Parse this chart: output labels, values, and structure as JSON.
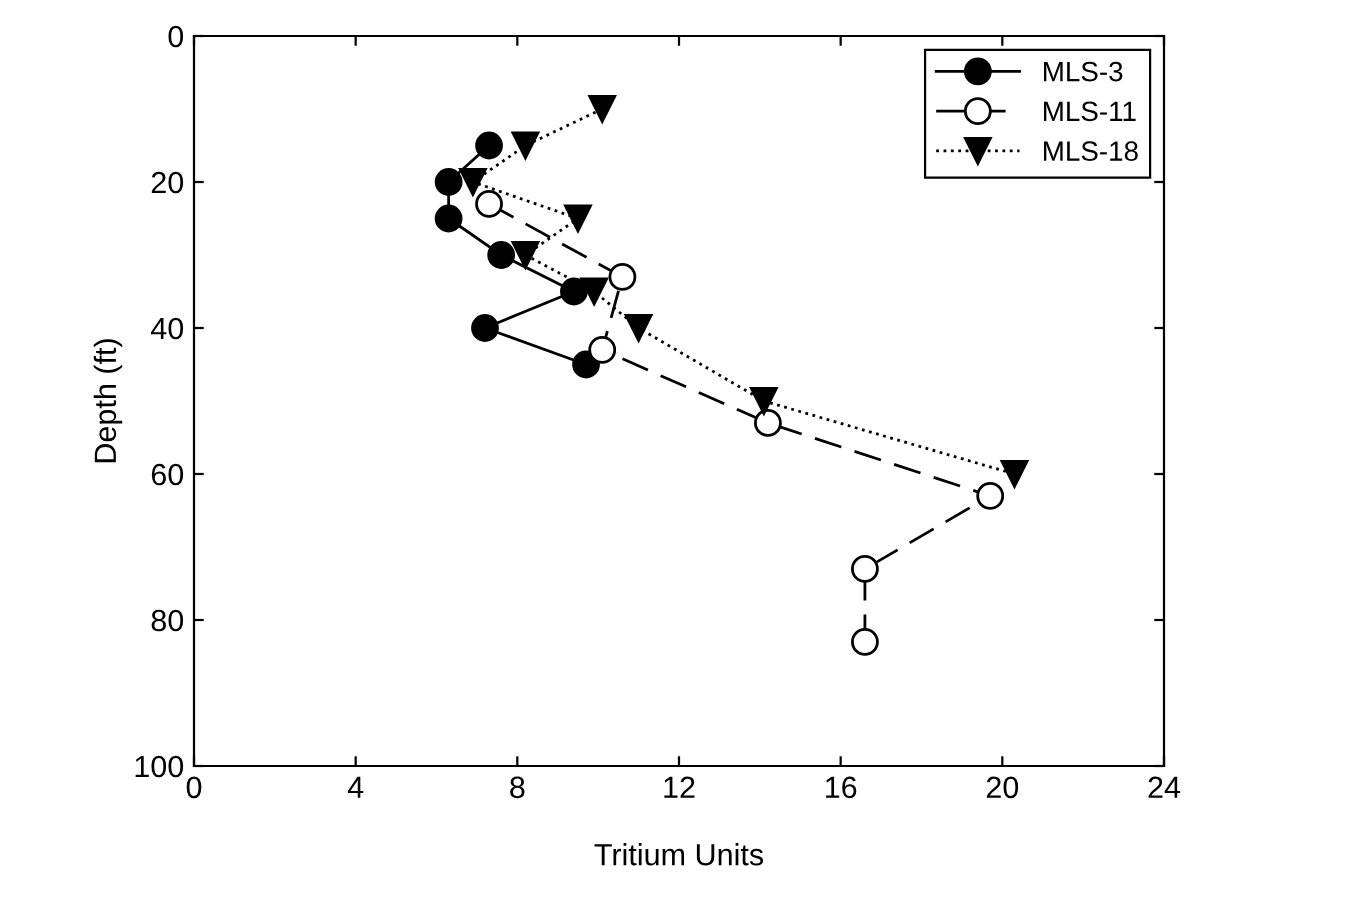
{
  "chart_data": {
    "type": "line",
    "xlabel": "Tritium Units",
    "ylabel": "Depth (ft)",
    "xlim": [
      0,
      24
    ],
    "xticks": [
      0,
      4,
      8,
      12,
      16,
      20,
      24
    ],
    "ylim": [
      100,
      0
    ],
    "yticks": [
      0,
      20,
      40,
      60,
      80,
      100
    ],
    "legend": "top right",
    "grid": false,
    "series": [
      {
        "name": "MLS-3",
        "color": "#000000",
        "marker": "circle",
        "line_style": "solid",
        "x": [
          7.3,
          6.3,
          6.3,
          7.6,
          9.4,
          7.2,
          9.7
        ],
        "values": [
          15,
          20,
          25,
          30,
          35,
          40,
          45
        ]
      },
      {
        "name": "MLS-11",
        "color": "#000000",
        "marker": "circle",
        "line_style": "dashed",
        "x": [
          7.3,
          10.6,
          10.1,
          14.2,
          19.7,
          16.6,
          16.6
        ],
        "values": [
          23,
          33,
          43,
          53,
          63,
          73,
          83
        ]
      },
      {
        "name": "MLS-18",
        "color": "#000000",
        "marker": "triangle",
        "line_style": "dotted",
        "x": [
          10.1,
          8.2,
          6.9,
          9.5,
          8.2,
          9.9,
          11.0,
          14.1,
          20.3
        ],
        "values": [
          10,
          15,
          20,
          25,
          30,
          35,
          40,
          50,
          60
        ]
      }
    ]
  }
}
